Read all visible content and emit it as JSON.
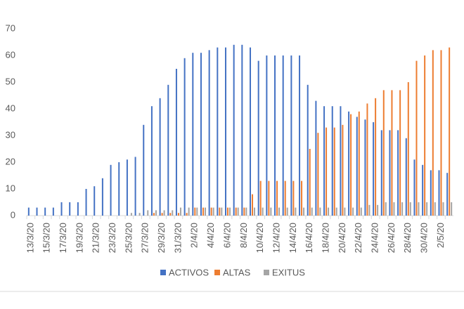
{
  "chart_data": {
    "type": "bar",
    "categories": [
      "13/3/20",
      null,
      "15/3/20",
      null,
      "17/3/20",
      null,
      "19/3/20",
      null,
      "21/3/20",
      null,
      "23/3/20",
      null,
      "25/3/20",
      null,
      "27/3/20",
      null,
      "29/3/20",
      null,
      "31/3/20",
      null,
      "2/4/20",
      null,
      "4/4/20",
      null,
      "6/4/20",
      null,
      "8/4/20",
      null,
      "10/4/20",
      null,
      "12/4/20",
      null,
      "14/4/20",
      null,
      "16/4/20",
      null,
      "18/4/20",
      null,
      "20/4/20",
      null,
      "22/4/20",
      null,
      "24/4/20",
      null,
      "26/4/20",
      null,
      "28/4/20",
      null,
      "30/4/20",
      null,
      "2/5/20",
      null
    ],
    "series": [
      {
        "name": "ACTIVOS",
        "color": "#4472c4",
        "values": [
          3,
          3,
          3,
          3,
          5,
          5,
          5,
          10,
          11,
          14,
          19,
          20,
          21,
          22,
          34,
          41,
          44,
          49,
          55,
          59,
          61,
          61,
          62,
          63,
          63,
          64,
          64,
          63,
          58,
          60,
          60,
          60,
          60,
          60,
          49,
          43,
          41,
          41,
          41,
          39,
          37,
          36,
          35,
          32,
          32,
          32,
          29,
          21,
          19,
          17,
          17,
          16
        ]
      },
      {
        "name": "ALTAS",
        "color": "#ed7d31",
        "values": [
          0,
          0,
          0,
          0,
          0,
          0,
          0,
          0,
          0,
          0,
          0,
          0,
          0,
          0,
          0,
          1,
          1,
          1,
          1,
          1,
          3,
          3,
          3,
          3,
          3,
          3,
          3,
          8,
          13,
          13,
          13,
          13,
          13,
          13,
          25,
          31,
          33,
          33,
          34,
          38,
          39,
          42,
          44,
          47,
          47,
          47,
          50,
          58,
          60,
          62,
          62,
          63
        ]
      },
      {
        "name": "EXITUS",
        "color": "#a5a5a5",
        "values": [
          0,
          0,
          0,
          0,
          0,
          0,
          0,
          0,
          0,
          0,
          0,
          0,
          1,
          1,
          2,
          2,
          2,
          2,
          3,
          3,
          3,
          3,
          3,
          3,
          3,
          3,
          3,
          3,
          3,
          3,
          3,
          3,
          3,
          3,
          3,
          3,
          3,
          3,
          3,
          3,
          3,
          4,
          4,
          5,
          5,
          5,
          5,
          5,
          5,
          5,
          5,
          5
        ]
      }
    ],
    "ylim": [
      0,
      70
    ],
    "yticks": [
      0,
      10,
      20,
      30,
      40,
      50,
      60,
      70
    ],
    "grid": false,
    "legend": "bottom"
  }
}
